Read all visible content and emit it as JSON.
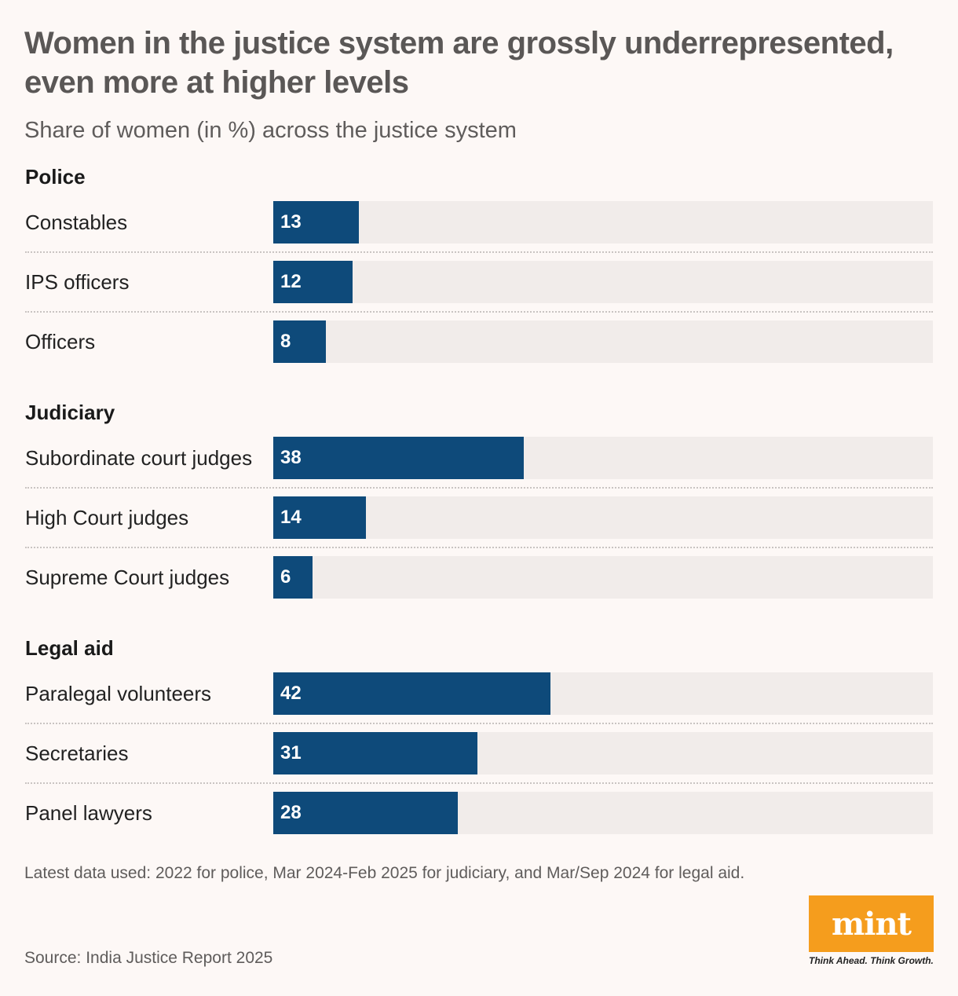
{
  "header": {
    "title": "Women in the justice system are grossly underrepresented, even more at higher levels",
    "subtitle": "Share of women (in %) across the justice system"
  },
  "chart_data": {
    "type": "bar",
    "orientation": "horizontal",
    "title": "Women in the justice system are grossly underrepresented, even more at higher levels",
    "subtitle": "Share of women (in %) across the justice system",
    "unit": "%",
    "xlim": [
      0,
      100
    ],
    "groups": [
      {
        "name": "Police",
        "categories": [
          "Constables",
          "IPS officers",
          "Officers"
        ],
        "values": [
          13,
          12,
          8
        ]
      },
      {
        "name": "Judiciary",
        "categories": [
          "Subordinate court judges",
          "High Court judges",
          "Supreme Court judges"
        ],
        "values": [
          38,
          14,
          6
        ]
      },
      {
        "name": "Legal aid",
        "categories": [
          "Paralegal volunteers",
          "Secretaries",
          "Panel lawyers"
        ],
        "values": [
          42,
          31,
          28
        ]
      }
    ],
    "bar_color": "#0e4a7a",
    "track_color": "#f1ecea"
  },
  "footer": {
    "note": "Latest data used: 2022 for police, Mar 2024-Feb 2025 for judiciary, and Mar/Sep 2024 for legal aid.",
    "source": "Source: India Justice Report 2025"
  },
  "brand": {
    "logo_text": "mint",
    "tagline": "Think Ahead. Think Growth.",
    "logo_color": "#f59d1d"
  }
}
